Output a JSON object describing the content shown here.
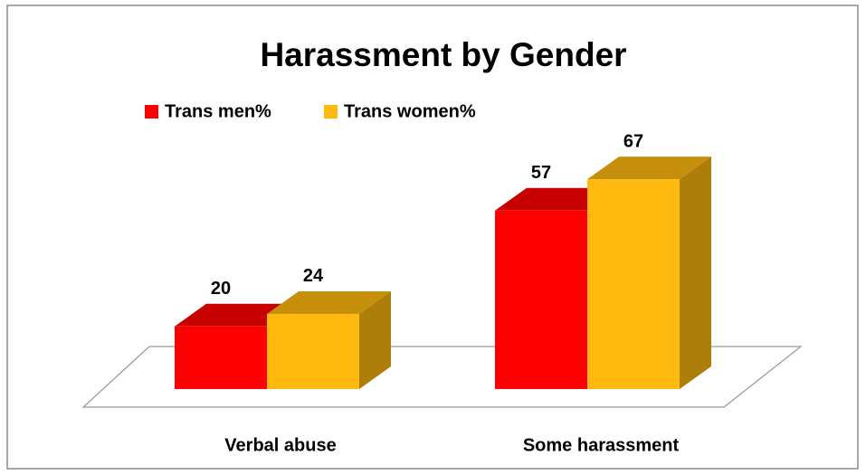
{
  "chart_data": {
    "type": "bar3d",
    "title": "Harassment by Gender",
    "categories": [
      "Verbal abuse",
      "Some harassment"
    ],
    "series": [
      {
        "name": "Trans men%",
        "color": "#ff0000",
        "values": [
          20,
          57
        ]
      },
      {
        "name": "Trans women%",
        "color": "#ffb90f",
        "values": [
          24,
          67
        ]
      }
    ],
    "legend": "top-left"
  }
}
